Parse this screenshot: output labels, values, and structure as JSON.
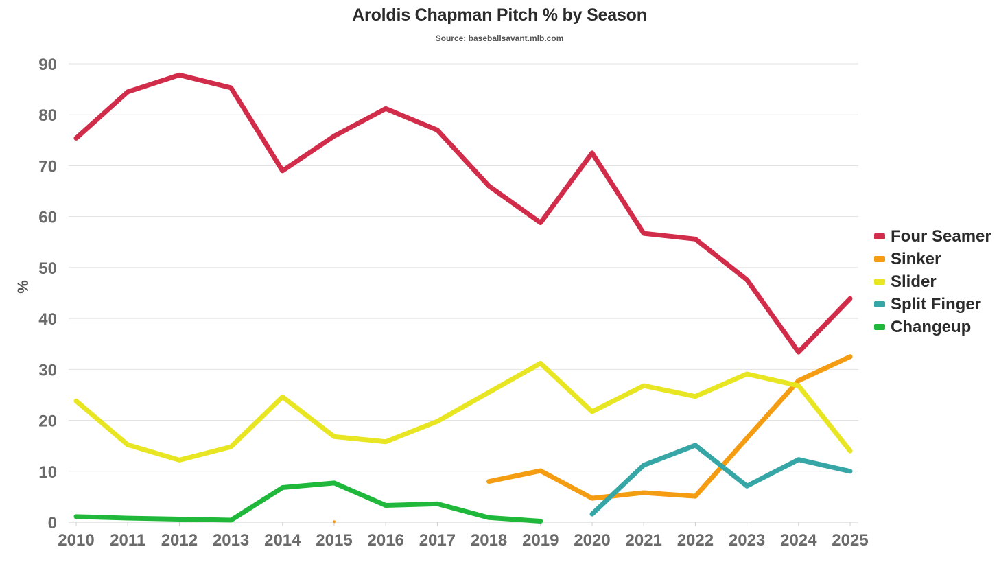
{
  "header": {
    "title": "Aroldis Chapman Pitch % by Season",
    "subtitle": "Source: baseballsavant.mlb.com"
  },
  "chart_data": {
    "type": "line",
    "title": "Aroldis Chapman Pitch % by Season",
    "subtitle": "Source: baseballsavant.mlb.com",
    "xlabel": "",
    "ylabel": "%",
    "x": [
      2010,
      2011,
      2012,
      2013,
      2014,
      2015,
      2016,
      2017,
      2018,
      2019,
      2020,
      2021,
      2022,
      2023,
      2024,
      2025
    ],
    "ylim": [
      0,
      90
    ],
    "yticks": [
      0,
      10,
      20,
      30,
      40,
      50,
      60,
      70,
      80,
      90
    ],
    "grid": true,
    "legend_position": "right",
    "series": [
      {
        "name": "Four Seamer",
        "color": "#d12d4a",
        "values": [
          75.4,
          84.5,
          87.8,
          85.3,
          69.0,
          75.8,
          81.2,
          77.0,
          66.0,
          58.8,
          72.5,
          56.7,
          55.6,
          47.6,
          33.4,
          43.9
        ]
      },
      {
        "name": "Sinker",
        "color": "#f59d12",
        "values": [
          null,
          null,
          null,
          null,
          null,
          0.1,
          null,
          null,
          8.0,
          10.1,
          4.7,
          5.8,
          5.1,
          16.5,
          27.8,
          32.5
        ]
      },
      {
        "name": "Slider",
        "color": "#e8e623",
        "values": [
          23.8,
          15.2,
          12.2,
          14.8,
          24.6,
          16.8,
          15.8,
          19.8,
          25.5,
          31.2,
          21.7,
          26.8,
          24.7,
          29.1,
          26.8,
          14.0
        ]
      },
      {
        "name": "Split Finger",
        "color": "#37a6a6",
        "values": [
          null,
          null,
          null,
          null,
          null,
          null,
          null,
          null,
          null,
          null,
          1.6,
          11.2,
          15.1,
          7.1,
          12.3,
          10.0
        ]
      },
      {
        "name": "Changeup",
        "color": "#1fb83a",
        "values": [
          1.1,
          0.8,
          0.6,
          0.4,
          6.8,
          7.7,
          3.3,
          3.6,
          0.9,
          0.2,
          null,
          null,
          null,
          null,
          null,
          null
        ]
      }
    ]
  }
}
